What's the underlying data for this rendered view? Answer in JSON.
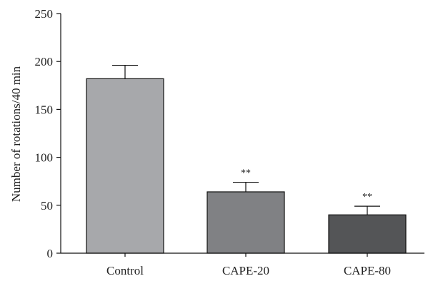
{
  "chart_data": {
    "type": "bar",
    "title": "",
    "xlabel": "",
    "ylabel": "Number of rotations/40 min",
    "ylim": [
      0,
      250
    ],
    "yticks": [
      0,
      50,
      100,
      150,
      200,
      250
    ],
    "categories": [
      "Control",
      "CAPE-20",
      "CAPE-80"
    ],
    "values": [
      182,
      64,
      40
    ],
    "errors": [
      14,
      10,
      9
    ],
    "annotations": [
      "",
      "**",
      "**"
    ],
    "colors": [
      "#a7a8ab",
      "#808184",
      "#545557"
    ],
    "grid": false,
    "legend": "none"
  }
}
